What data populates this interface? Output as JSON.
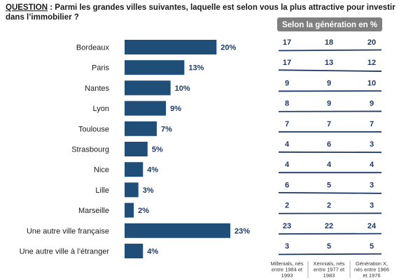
{
  "question": {
    "label": "QUESTION",
    "text": ": Parmi les grandes villes suivantes, laquelle est selon vous la plus attractive pour investir dans l’immobilier ?"
  },
  "generation_panel": {
    "title": "Selon la génération en %",
    "columns": [
      "Millenials, nés entre 1984 et 1993",
      "Xennials, nés entre 1977 et 1983",
      "Génération X, nés entre 1966 et 1976"
    ],
    "colors": {
      "header_bg": "#7f7f7f",
      "line": "#1f3864"
    }
  },
  "chart_data": {
    "type": "bar",
    "orientation": "horizontal",
    "categories": [
      "Bordeaux",
      "Paris",
      "Nantes",
      "Lyon",
      "Toulouse",
      "Strasbourg",
      "Nice",
      "Lille",
      "Marseille",
      "Une autre ville française",
      "Une autre ville à l’étranger"
    ],
    "values": [
      20,
      13,
      10,
      9,
      7,
      5,
      4,
      3,
      2,
      23,
      4
    ],
    "value_labels": [
      "20%",
      "13%",
      "10%",
      "9%",
      "7%",
      "5%",
      "4%",
      "3%",
      "2%",
      "23%",
      "4%"
    ],
    "xlim": [
      0,
      23
    ],
    "bar_color": "#1f4e79",
    "grid": false,
    "by_generation": [
      [
        17,
        18,
        20
      ],
      [
        17,
        13,
        12
      ],
      [
        9,
        9,
        10
      ],
      [
        8,
        9,
        9
      ],
      [
        7,
        7,
        7
      ],
      [
        4,
        6,
        3
      ],
      [
        4,
        4,
        4
      ],
      [
        6,
        5,
        3
      ],
      [
        2,
        2,
        3
      ],
      [
        23,
        22,
        24
      ],
      [
        3,
        5,
        5
      ]
    ]
  }
}
